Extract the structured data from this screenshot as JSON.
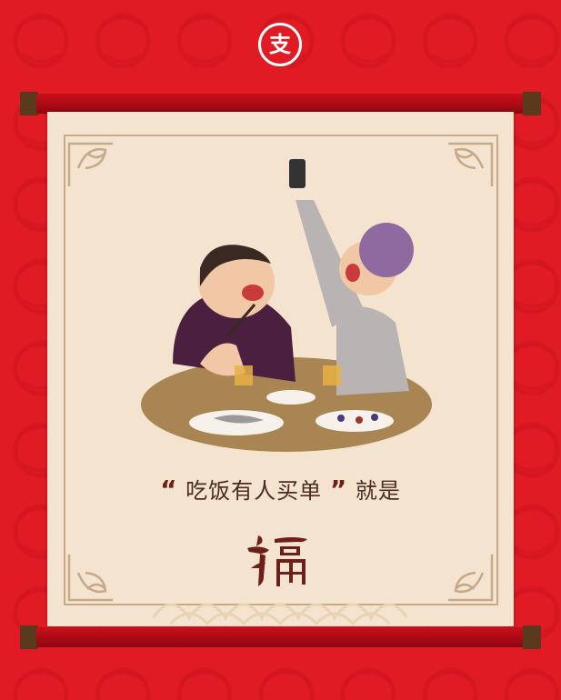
{
  "logo": {
    "glyph": "支",
    "icon": "alipay-logo-icon"
  },
  "caption": {
    "open_quote": "“",
    "text": "吃饭有人买单",
    "close_quote": "”",
    "suffix": "就是"
  },
  "fu_character": {
    "text": "福"
  },
  "colors": {
    "background": "#e01b24",
    "paper": "#f4e4cf",
    "rod": "#b80d17",
    "rod_cap": "#5a3a1d",
    "text": "#4a2b22",
    "table": "#a88552"
  }
}
